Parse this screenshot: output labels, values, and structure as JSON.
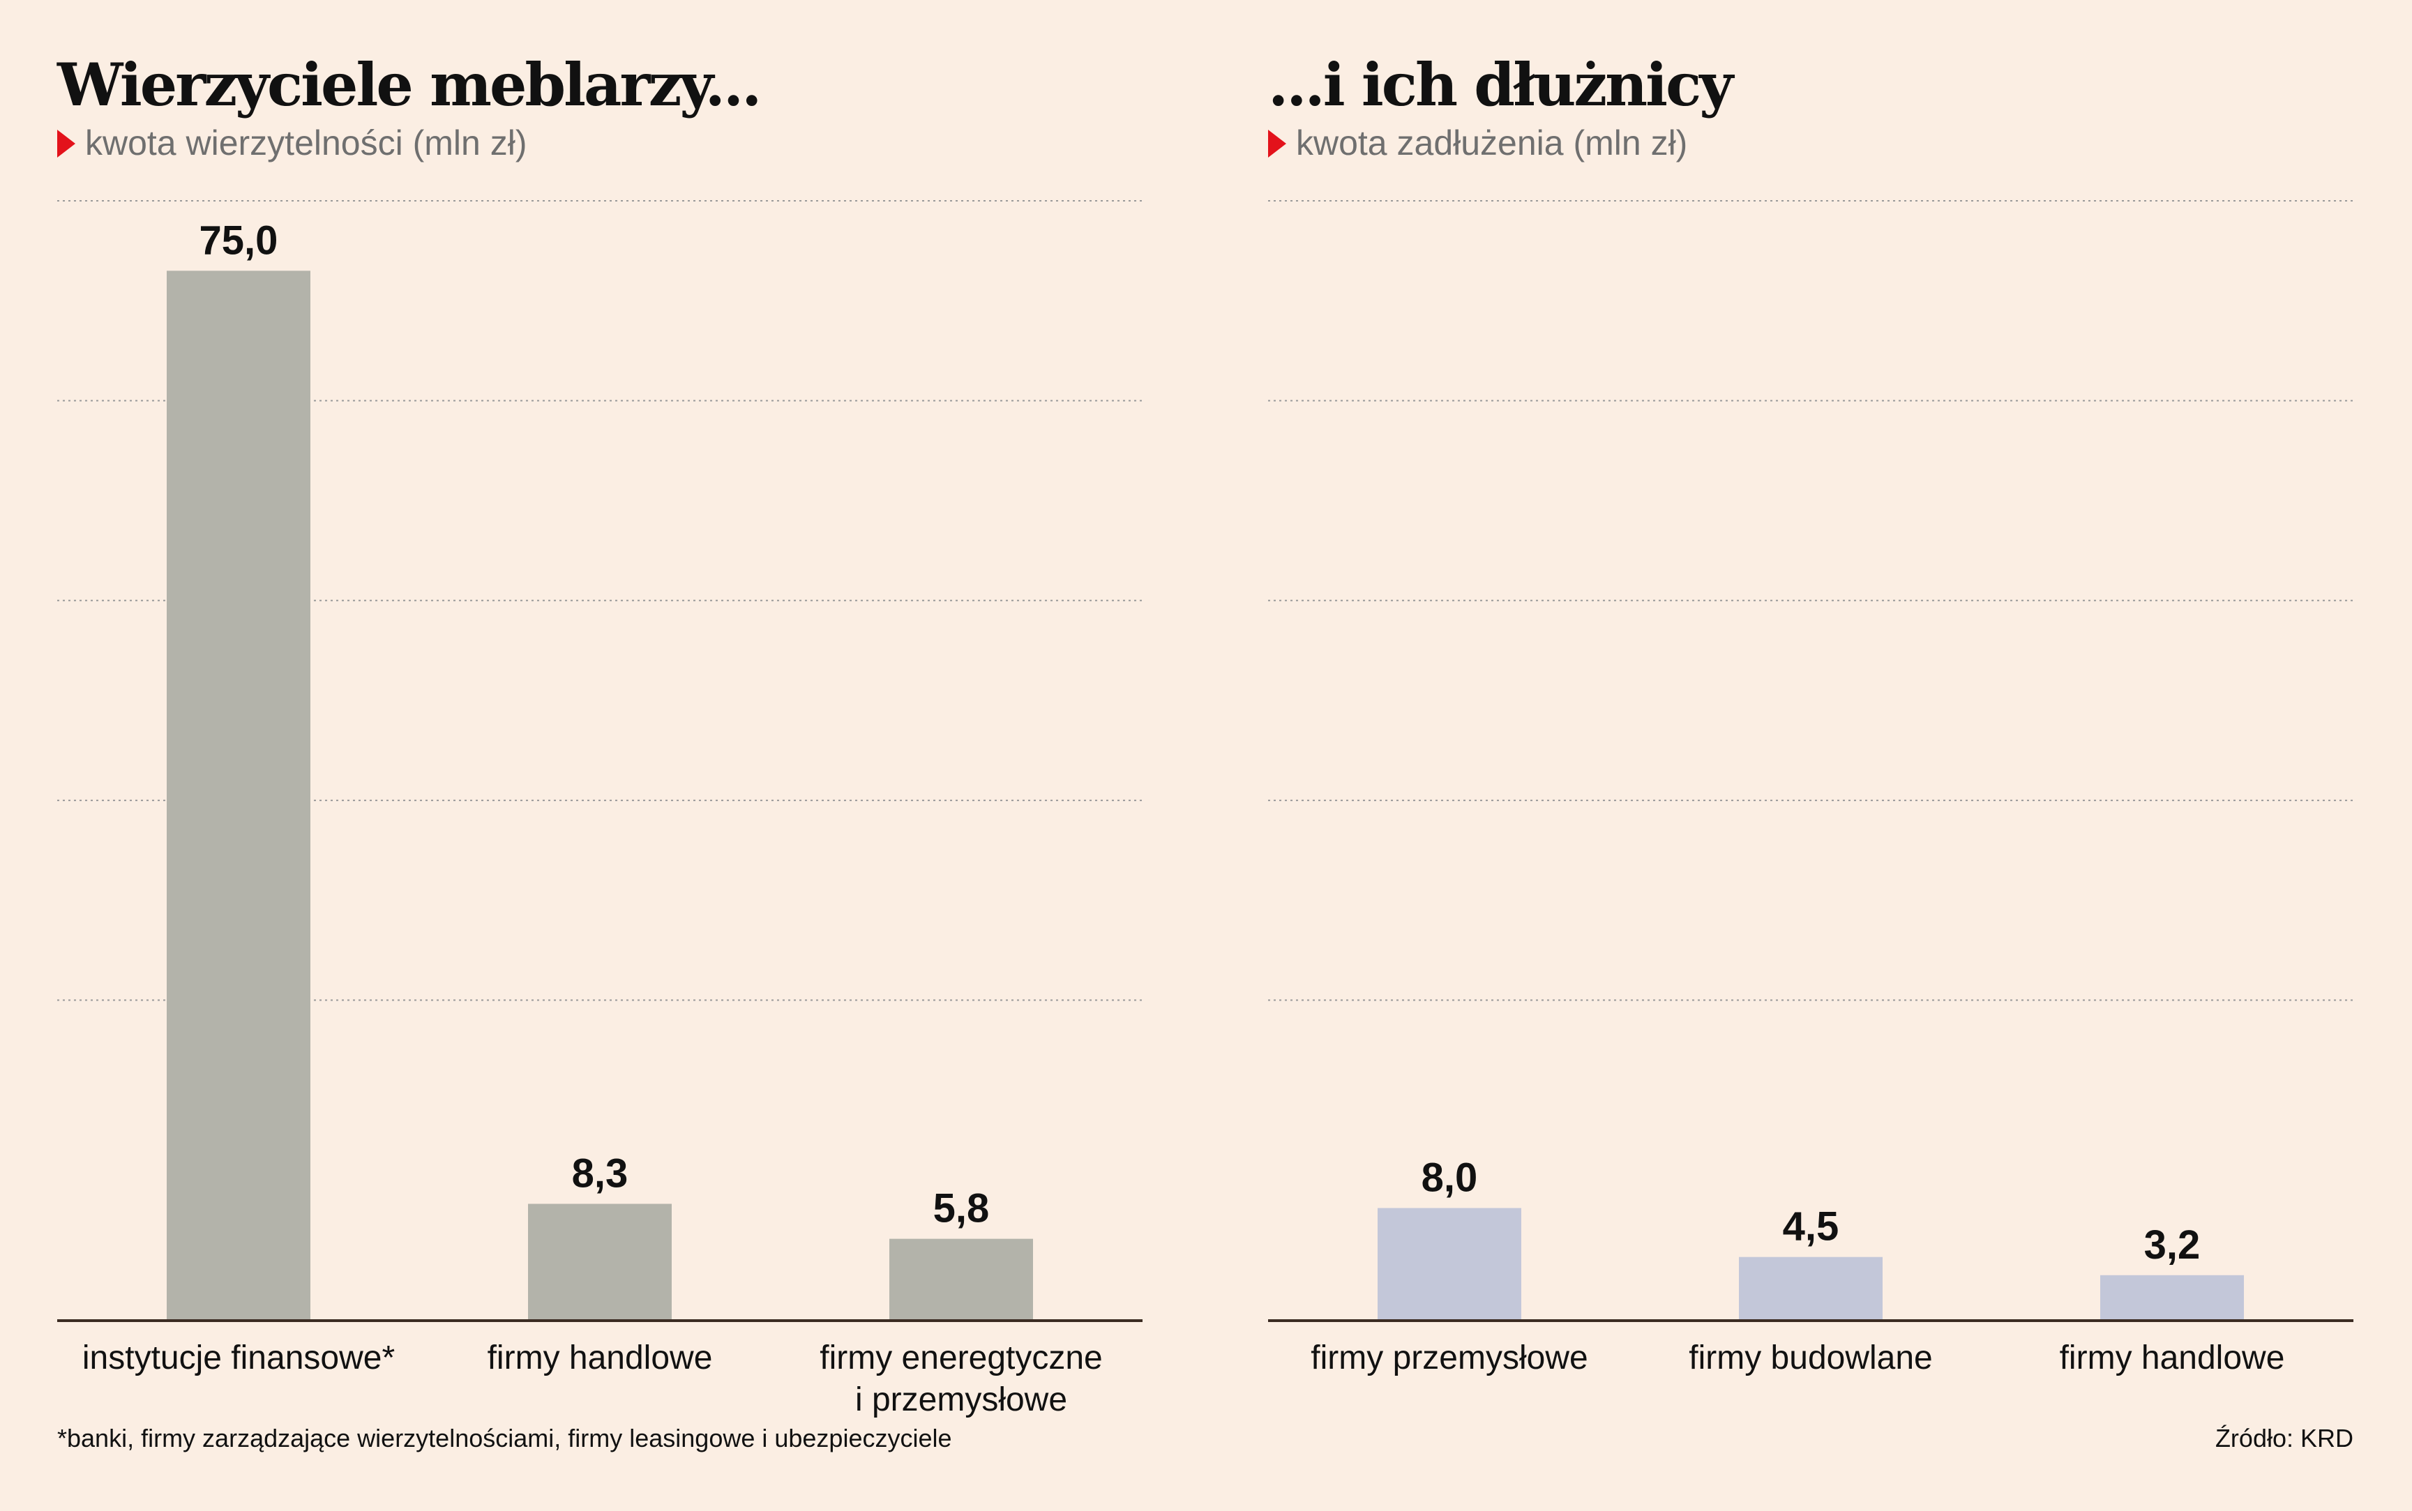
{
  "chart_data": [
    {
      "type": "bar",
      "title": "Wierzyciele meblarzy...",
      "subtitle": "kwota wierzytelności (mln zł)",
      "categories": [
        [
          "instytucje finansowe*"
        ],
        [
          "firmy handlowe"
        ],
        [
          "firmy eneregtyczne",
          "i przemysłowe"
        ]
      ],
      "values": [
        75.0,
        8.3,
        5.8
      ],
      "value_labels": [
        "75,0",
        "8,3",
        "5,8"
      ],
      "ylim": [
        0,
        80
      ],
      "grid": true,
      "bar_color": "#b3b3aa",
      "xlabel": "",
      "ylabel": ""
    },
    {
      "type": "bar",
      "title": "...i ich dłużnicy",
      "subtitle": "kwota zadłużenia (mln zł)",
      "categories": [
        [
          "firmy przemysłowe"
        ],
        [
          "firmy budowlane"
        ],
        [
          "firmy handlowe"
        ]
      ],
      "values": [
        8.0,
        4.5,
        3.2
      ],
      "value_labels": [
        "8,0",
        "4,5",
        "3,2"
      ],
      "ylim": [
        0,
        80
      ],
      "grid": true,
      "bar_color": "#c3c7d9",
      "xlabel": "",
      "ylabel": ""
    }
  ],
  "footnote": "*banki, firmy zarządzające wierzytelnościami, firmy leasingowe i ubezpieczyciele",
  "source": "Źródło: KRD",
  "colors": {
    "background": "#fbeee3",
    "accent": "#e3121b",
    "subtitle": "#6f6f6f"
  }
}
